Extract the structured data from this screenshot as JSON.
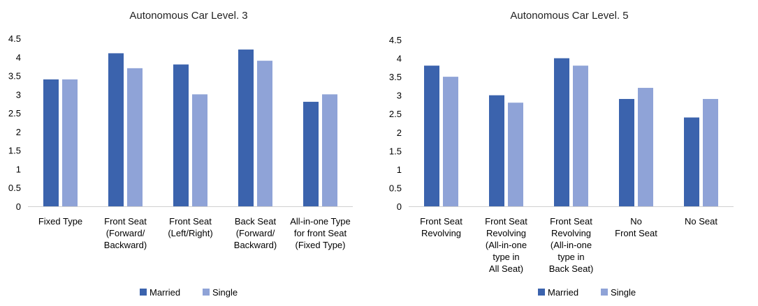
{
  "chart_data": [
    {
      "type": "bar",
      "title": "Autonomous Car Level. 3",
      "categories": [
        [
          "Fixed Type"
        ],
        [
          "Front Seat",
          "(Forward/",
          "Backward)"
        ],
        [
          "Front Seat",
          "(Left/Right)"
        ],
        [
          "Back Seat",
          "(Forward/",
          "Backward)"
        ],
        [
          "All-in-one Type",
          "for front Seat",
          "(Fixed Type)"
        ]
      ],
      "series": [
        {
          "name": "Married",
          "color": "#3b63ad",
          "values": [
            3.4,
            4.1,
            3.8,
            4.2,
            2.8
          ]
        },
        {
          "name": "Single",
          "color": "#8fa3d7",
          "values": [
            3.4,
            3.7,
            3.0,
            3.9,
            3.0
          ]
        }
      ],
      "ylim": [
        0,
        4.5
      ],
      "yticks": [
        "0",
        "0.5",
        "1",
        "1.5",
        "2",
        "2.5",
        "3",
        "3.5",
        "4",
        "4.5"
      ],
      "grid": false,
      "legend_position": "bottom"
    },
    {
      "type": "bar",
      "title": "Autonomous Car Level. 5",
      "categories": [
        [
          "Front Seat",
          "Revolving"
        ],
        [
          "Front Seat",
          "Revolving",
          "(All-in-one",
          "type in",
          "All Seat)"
        ],
        [
          "Front Seat",
          "Revolving",
          "(All-in-one",
          "type in",
          "Back Seat)"
        ],
        [
          "No",
          "Front Seat"
        ],
        [
          "No Seat"
        ]
      ],
      "series": [
        {
          "name": "Married",
          "color": "#3b63ad",
          "values": [
            3.8,
            3.0,
            4.0,
            2.9,
            2.4
          ]
        },
        {
          "name": "Single",
          "color": "#8fa3d7",
          "values": [
            3.5,
            2.8,
            3.8,
            3.2,
            2.9
          ]
        }
      ],
      "ylim": [
        0,
        4.5
      ],
      "yticks": [
        "0",
        "0.5",
        "1",
        "1.5",
        "2",
        "2.5",
        "3",
        "3.5",
        "4",
        "4.5"
      ],
      "grid": false,
      "legend_position": "bottom"
    }
  ]
}
